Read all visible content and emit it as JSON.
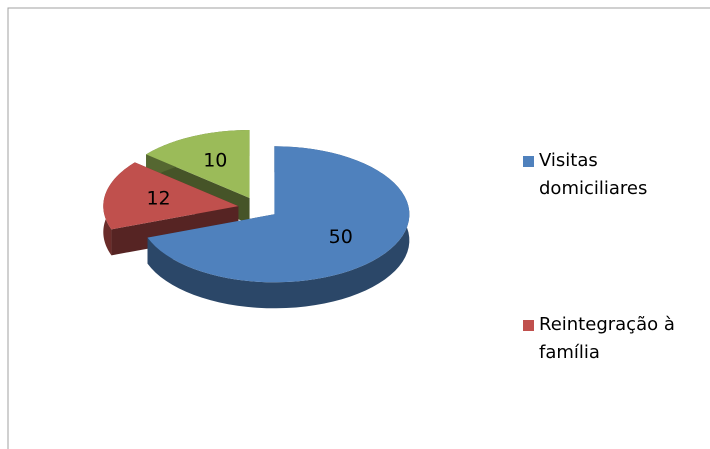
{
  "chart_data": {
    "type": "pie",
    "categories": [
      "Visitas domiciliares",
      "Reintegração à família",
      null
    ],
    "values": [
      50,
      12,
      10
    ],
    "colors": [
      "#4f81bd",
      "#c0504d",
      "#9bbb59"
    ]
  }
}
